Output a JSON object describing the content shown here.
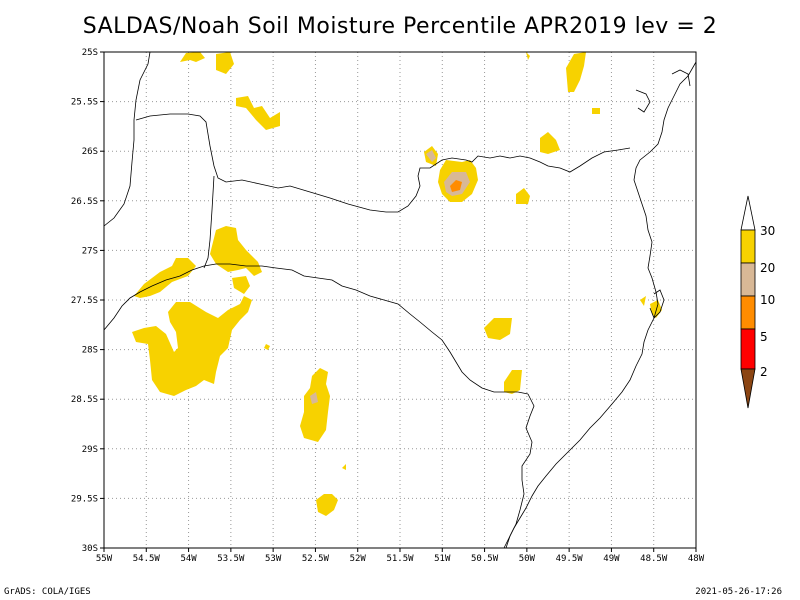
{
  "title": "SALDAS/Noah Soil Moisture Percentile APR2019 lev = 2",
  "footer": {
    "left": "GrADS: COLA/IGES",
    "right": "2021-05-26-17:26"
  },
  "axes": {
    "lon_labels": [
      "55W",
      "54.5W",
      "54W",
      "53.5W",
      "53W",
      "52.5W",
      "52W",
      "51.5W",
      "51W",
      "50.5W",
      "50W",
      "49.5W",
      "49W",
      "48.5W",
      "48W"
    ],
    "lat_labels": [
      "25S",
      "25.5S",
      "26S",
      "26.5S",
      "27S",
      "27.5S",
      "28S",
      "28.5S",
      "29S",
      "29.5S",
      "30S"
    ]
  },
  "legend": {
    "labels": [
      "30",
      "20",
      "10",
      "5",
      "2"
    ],
    "colors": [
      "#ffffff",
      "#f7d200",
      "#d8b896",
      "#ff8c00",
      "#ff0000",
      "#8b4513"
    ]
  },
  "map_colors": {
    "percentile_30": "#f7d200",
    "percentile_20": "#d8b896",
    "percentile_10": "#ff8c00"
  },
  "chart_data": {
    "type": "heatmap",
    "title": "SALDAS/Noah Soil Moisture Percentile APR2019 lev = 2",
    "xlim": [
      -55,
      -48
    ],
    "ylim": [
      -30,
      -25
    ],
    "x_ticks": [
      -55,
      -54.5,
      -54,
      -53.5,
      -53,
      -52.5,
      -52,
      -51.5,
      -51,
      -50.5,
      -50,
      -49.5,
      -49,
      -48.5,
      -48
    ],
    "y_ticks": [
      -25,
      -25.5,
      -26,
      -26.5,
      -27,
      -27.5,
      -28,
      -28.5,
      -29,
      -29.5,
      -30
    ],
    "color_levels": [
      2,
      5,
      10,
      20,
      30
    ],
    "grid": true
  }
}
